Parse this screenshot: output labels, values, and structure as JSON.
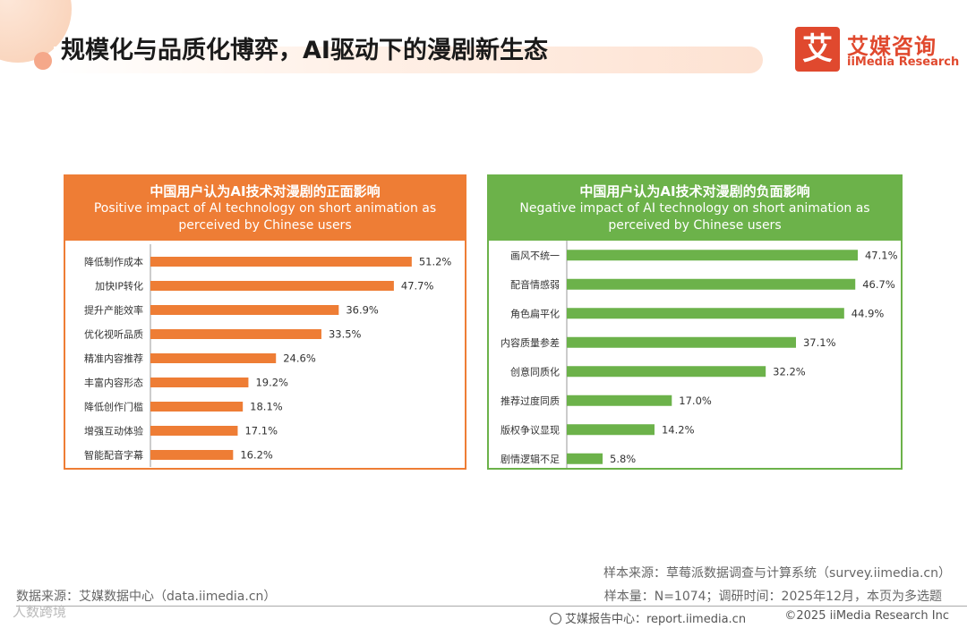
{
  "header": {
    "title": "规模化与品质化博弈，AI驱动下的漫剧新生态",
    "logo_mark": "艾",
    "logo_cn": "艾媒咨询",
    "logo_en": "iiMedia Research"
  },
  "colors": {
    "positive": "#ee7d35",
    "negative": "#6cb24a",
    "brand": "#e0492e"
  },
  "chart_data": [
    {
      "type": "bar",
      "orientation": "horizontal",
      "title_cn": "中国用户认为AI技术对漫剧的正面影响",
      "title_en": "Positive impact of AI technology on short animation as perceived by Chinese users",
      "title_en_line1": "Positive impact of AI technology on short animation as",
      "title_en_line2": "perceived by Chinese users",
      "categories": [
        "降低制作成本",
        "加快IP转化",
        "提升产能效率",
        "优化视听品质",
        "精准内容推荐",
        "丰富内容形态",
        "降低创作门槛",
        "增强互动体验",
        "智能配音字幕"
      ],
      "values": [
        51.2,
        47.7,
        36.9,
        33.5,
        24.6,
        19.2,
        18.1,
        17.1,
        16.2
      ],
      "labels": [
        "51.2%",
        "47.7%",
        "36.9%",
        "33.5%",
        "24.6%",
        "19.2%",
        "18.1%",
        "17.1%",
        "16.2%"
      ],
      "unit": "%"
    },
    {
      "type": "bar",
      "orientation": "horizontal",
      "title_cn": "中国用户认为AI技术对漫剧的负面影响",
      "title_en": "Negative impact of AI technology on short animation as perceived by Chinese users",
      "title_en_line1": "Negative impact of AI technology on short animation as",
      "title_en_line2": "perceived by Chinese users",
      "categories": [
        "画风不统一",
        "配音情感弱",
        "角色扁平化",
        "内容质量参差",
        "创意同质化",
        "推荐过度同质",
        "版权争议显现",
        "剧情逻辑不足"
      ],
      "values": [
        47.1,
        46.7,
        44.9,
        37.1,
        32.2,
        17.0,
        14.2,
        5.8
      ],
      "labels": [
        "47.1%",
        "46.7%",
        "44.9%",
        "37.1%",
        "32.2%",
        "17.0%",
        "14.2%",
        "5.8%"
      ],
      "unit": "%"
    }
  ],
  "footer": {
    "source_left": "数据来源：艾媒数据中心（data.iimedia.cn）",
    "sample_source": "样本来源：草莓派数据调查与计算系统（survey.iimedia.cn）",
    "sample_info": "样本量：N=1074；调研时间：2025年12月，本页为多选题",
    "report_center": "艾媒报告中心：report.iimedia.cn",
    "copyright": "©2025  iiMedia Research  Inc",
    "watermark": "人数跨境"
  }
}
